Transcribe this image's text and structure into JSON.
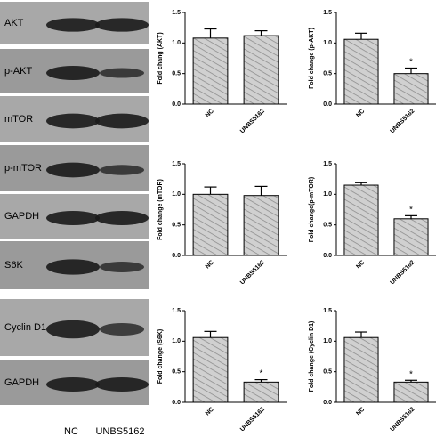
{
  "blot": {
    "labels": [
      "AKT",
      "p-AKT",
      "mTOR",
      "p-mTOR",
      "GAPDH",
      "S6K",
      "Cyclin D1",
      "GAPDH"
    ],
    "lanes": [
      "NC",
      "UNBS5162"
    ]
  },
  "chart_data": [
    {
      "type": "bar",
      "y_label": "Fold chang (AKT)",
      "categories": [
        "NC",
        "UNBS5162"
      ],
      "values": [
        1.08,
        1.12
      ],
      "errors": [
        0.15,
        0.08
      ],
      "color": "#d0d0d0",
      "ylim": [
        0,
        1.5
      ],
      "yticks": [
        {
          "value": 0,
          "label": "0.0"
        },
        0.5,
        {
          "value": 1,
          "label": "1.0"
        },
        1.5
      ]
    },
    {
      "type": "bar",
      "y_label": "Fold change (p-AKT)",
      "categories": [
        "NC",
        "UNBS5162"
      ],
      "values": [
        1.06,
        0.5
      ],
      "errors": [
        0.1,
        0.09
      ],
      "color": "#d0d0d0",
      "ylim": [
        0,
        1.5
      ],
      "yticks": [
        {
          "value": 0,
          "label": "0.0"
        },
        0.5,
        {
          "value": 1,
          "label": "1.0"
        },
        1.5
      ],
      "annotations": [
        {
          "category": "UNBS5162",
          "text": "*"
        }
      ]
    },
    {
      "type": "bar",
      "y_label": "Fold change (mTOR)",
      "categories": [
        "NC",
        "UNBS5162"
      ],
      "values": [
        1.0,
        0.98
      ],
      "errors": [
        0.12,
        0.15
      ],
      "color": "#d0d0d0",
      "ylim": [
        0,
        1.5
      ],
      "yticks": [
        {
          "value": 0,
          "label": "0.0"
        },
        0.5,
        {
          "value": 1,
          "label": "1.0"
        },
        1.5
      ]
    },
    {
      "type": "bar",
      "y_label": "Fold change(p-mTOR)",
      "categories": [
        "NC",
        "UNBS5162"
      ],
      "values": [
        1.15,
        0.6
      ],
      "errors": [
        0.04,
        0.05
      ],
      "color": "#d0d0d0",
      "ylim": [
        0,
        1.5
      ],
      "yticks": [
        {
          "value": 0,
          "label": "0.0"
        },
        0.5,
        {
          "value": 1,
          "label": "1.0"
        },
        1.5
      ],
      "annotations": [
        {
          "category": "UNBS5162",
          "text": "*"
        }
      ]
    },
    {
      "type": "bar",
      "y_label": "Fold change (S6K)",
      "categories": [
        "NC",
        "UNBS5162"
      ],
      "values": [
        1.06,
        0.33
      ],
      "errors": [
        0.1,
        0.04
      ],
      "color": "#d0d0d0",
      "ylim": [
        0,
        1.5
      ],
      "yticks": [
        {
          "value": 0,
          "label": "0.0"
        },
        0.5,
        {
          "value": 1,
          "label": "1.0"
        },
        1.5
      ],
      "annotations": [
        {
          "category": "UNBS5162",
          "text": "*"
        }
      ]
    },
    {
      "type": "bar",
      "y_label": "Fold change (Cyclin D1)",
      "categories": [
        "NC",
        "UNBS5162"
      ],
      "values": [
        1.06,
        0.33
      ],
      "errors": [
        0.09,
        0.03
      ],
      "color": "#d0d0d0",
      "ylim": [
        0,
        1.5
      ],
      "yticks": [
        {
          "value": 0,
          "label": "0.0"
        },
        0.5,
        {
          "value": 1,
          "label": "1.0"
        },
        1.5
      ],
      "annotations": [
        {
          "category": "UNBS5162",
          "text": "*"
        }
      ]
    }
  ]
}
